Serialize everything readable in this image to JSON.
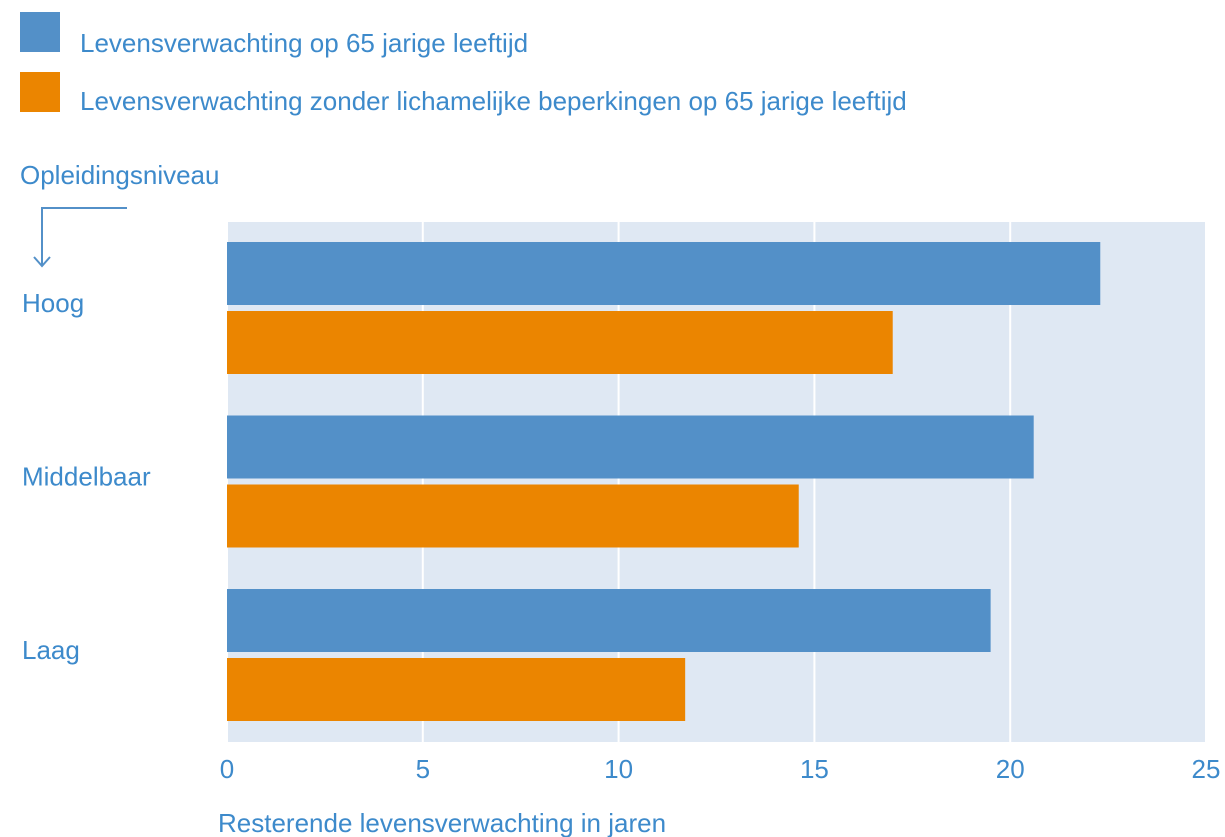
{
  "chart_data": {
    "type": "hbar",
    "categories": [
      "Hoog",
      "Middelbaar",
      "Laag"
    ],
    "series": [
      {
        "name": "Levensverwachting op 65 jarige leeftijd",
        "color": "#5390c8",
        "values": [
          22.3,
          20.6,
          19.5
        ]
      },
      {
        "name": "Levensverwachting zonder lichamelijke beperkingen op 65 jarige leeftijd",
        "color": "#eb8500",
        "values": [
          17.0,
          14.6,
          11.7
        ]
      }
    ],
    "ylabel": "Opleidingsniveau",
    "xlabel": "Resterende levensverwachting in jaren",
    "xlim": [
      0,
      25
    ],
    "xticks": [
      0,
      5,
      10,
      15,
      20,
      25
    ],
    "grid": true,
    "plot_background": "#dfe8f3",
    "text_color": "#3d8acb"
  }
}
